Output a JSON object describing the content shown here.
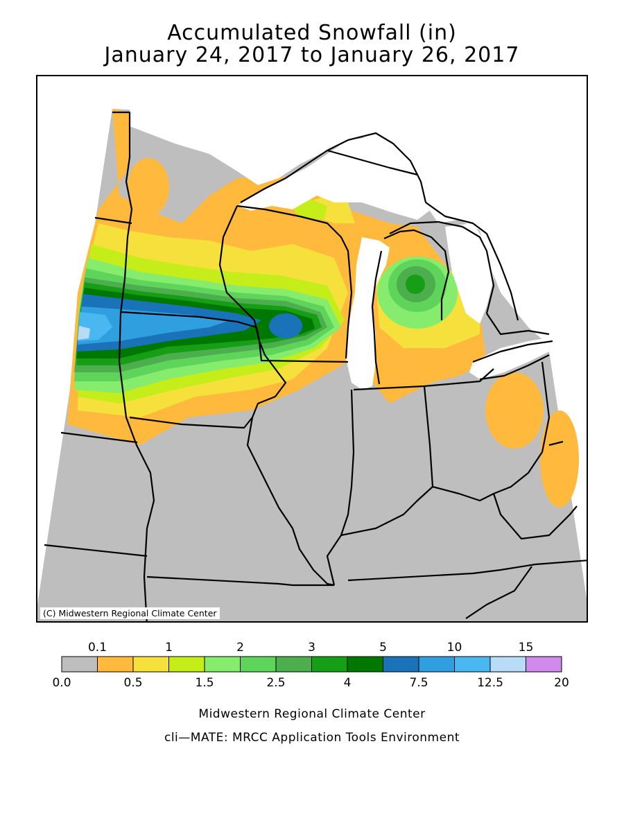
{
  "title": {
    "line1": "Accumulated Snowfall (in)",
    "line2": "January 24, 2017 to January 26, 2017"
  },
  "map": {
    "credit": "(C) Midwestern Regional Climate Center",
    "colors": {
      "no_snow": "#bebebe",
      "water": "#ffffff",
      "state_lines": "#000000"
    }
  },
  "legend": {
    "bins": [
      {
        "color": "#bebebe"
      },
      {
        "color": "#ffb93c"
      },
      {
        "color": "#f5e03c"
      },
      {
        "color": "#c5ed1a"
      },
      {
        "color": "#85ec6e"
      },
      {
        "color": "#5ed55a"
      },
      {
        "color": "#4cae4c"
      },
      {
        "color": "#169e16"
      },
      {
        "color": "#007800"
      },
      {
        "color": "#1a73b8"
      },
      {
        "color": "#2f9fe0"
      },
      {
        "color": "#4bb7f0"
      },
      {
        "color": "#b8dcf8"
      },
      {
        "color": "#d08aec"
      }
    ],
    "top_labels": [
      "0.1",
      "1",
      "2",
      "3",
      "5",
      "10",
      "15"
    ],
    "bottom_labels": [
      "0.0",
      "0.5",
      "1.5",
      "2.5",
      "4",
      "7.5",
      "12.5",
      "20"
    ]
  },
  "footer": {
    "line1": "Midwestern Regional Climate Center",
    "line2": "cli—MATE: MRCC Application Tools Environment"
  }
}
